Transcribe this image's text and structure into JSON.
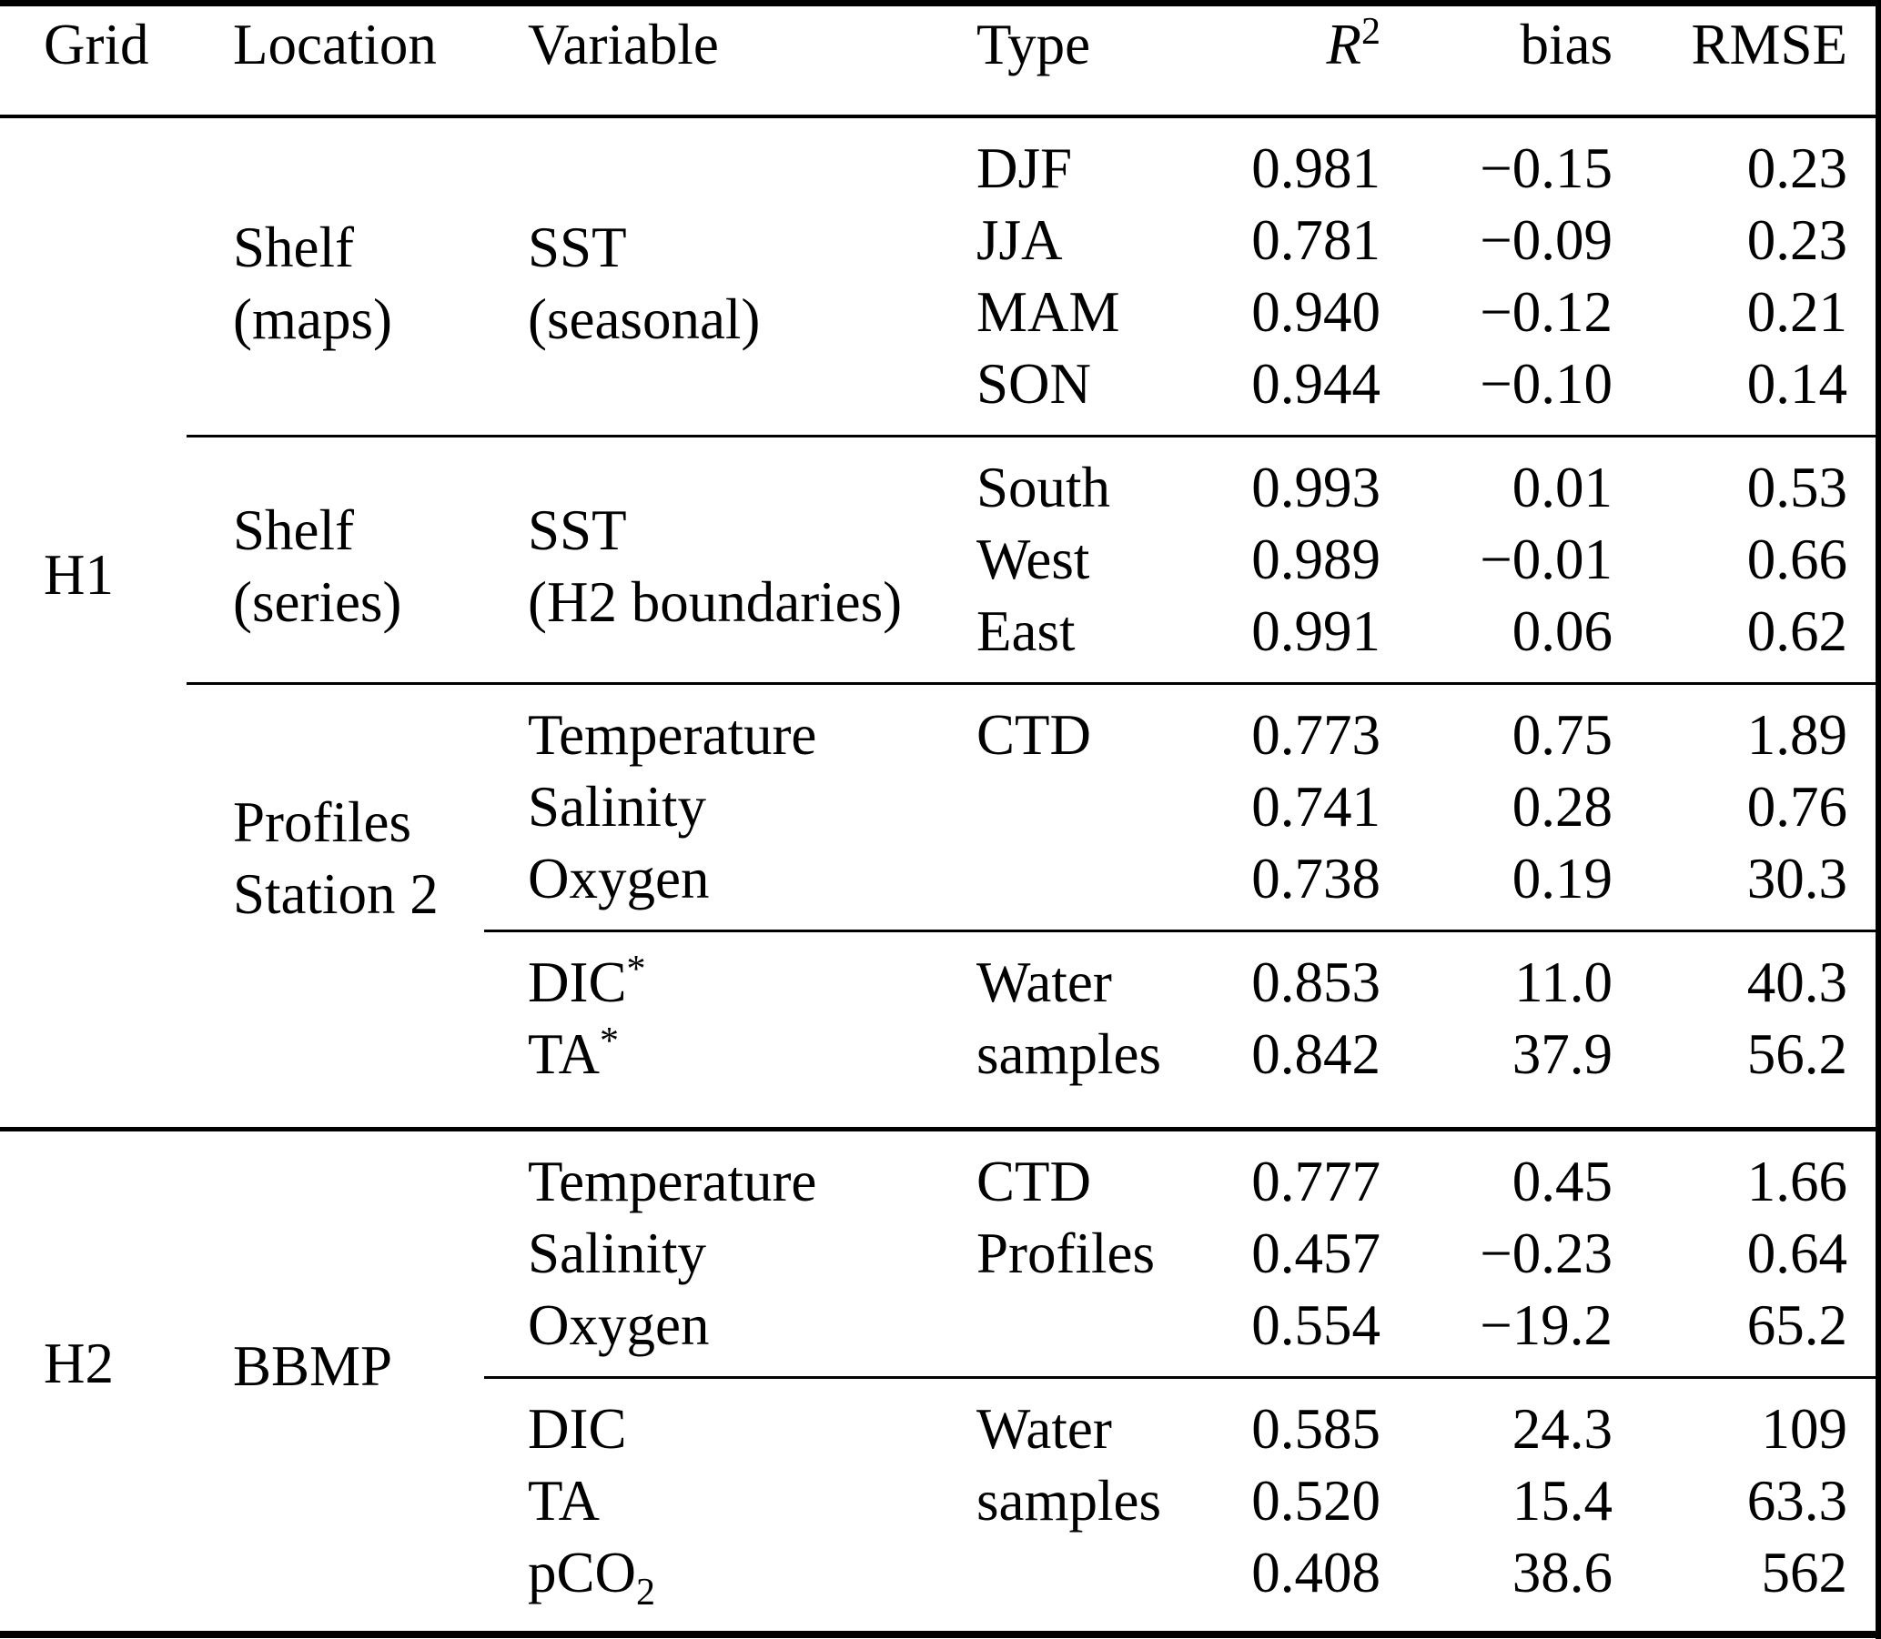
{
  "colors": {
    "background": "#ffffff",
    "text": "#000000",
    "rules": "#000000"
  },
  "header": {
    "grid": "Grid",
    "location": "Location",
    "variable": "Variable",
    "type": "Type",
    "r2_base": "R",
    "r2_sup": "2",
    "bias": "bias",
    "rmse": "RMSE"
  },
  "groups": {
    "h1": "H1",
    "h2": "H2"
  },
  "locations": {
    "shelf_maps_1": "Shelf",
    "shelf_maps_2": "(maps)",
    "shelf_series_1": "Shelf",
    "shelf_series_2": "(series)",
    "profiles_1": "Profiles",
    "profiles_2": "Station 2",
    "bbmp": "BBMP"
  },
  "variables": {
    "sst_seasonal_1": "SST",
    "sst_seasonal_2": "(seasonal)",
    "sst_h2_1": "SST",
    "sst_h2_2": "(H2 boundaries)"
  },
  "rows": [
    {
      "type": "DJF",
      "r2": "0.981",
      "bias": "−0.15",
      "rmse": "0.23"
    },
    {
      "type": "JJA",
      "r2": "0.781",
      "bias": "−0.09",
      "rmse": "0.23"
    },
    {
      "type": "MAM",
      "r2": "0.940",
      "bias": "−0.12",
      "rmse": "0.21"
    },
    {
      "type": "SON",
      "r2": "0.944",
      "bias": "−0.10",
      "rmse": "0.14"
    },
    {
      "type": "South",
      "r2": "0.993",
      "bias": "0.01",
      "rmse": "0.53"
    },
    {
      "type": "West",
      "r2": "0.989",
      "bias": "−0.01",
      "rmse": "0.66"
    },
    {
      "type": "East",
      "r2": "0.991",
      "bias": "0.06",
      "rmse": "0.62"
    },
    {
      "variable": "Temperature",
      "type": "CTD",
      "r2": "0.773",
      "bias": "0.75",
      "rmse": "1.89"
    },
    {
      "variable": "Salinity",
      "type": "",
      "r2": "0.741",
      "bias": "0.28",
      "rmse": "0.76"
    },
    {
      "variable": "Oxygen",
      "type": "",
      "r2": "0.738",
      "bias": "0.19",
      "rmse": "30.3"
    },
    {
      "variable_base": "DIC",
      "variable_sup": "*",
      "type": "Water",
      "r2": "0.853",
      "bias": "11.0",
      "rmse": "40.3"
    },
    {
      "variable_base": "TA",
      "variable_sup": "*",
      "type": "samples",
      "r2": "0.842",
      "bias": "37.9",
      "rmse": "56.2"
    },
    {
      "variable": "Temperature",
      "type": "CTD",
      "r2": "0.777",
      "bias": "0.45",
      "rmse": "1.66"
    },
    {
      "variable": "Salinity",
      "type": "Profiles",
      "r2": "0.457",
      "bias": "−0.23",
      "rmse": "0.64"
    },
    {
      "variable": "Oxygen",
      "type": "",
      "r2": "0.554",
      "bias": "−19.2",
      "rmse": "65.2"
    },
    {
      "variable": "DIC",
      "type": "Water",
      "r2": "0.585",
      "bias": "24.3",
      "rmse": "109"
    },
    {
      "variable": "TA",
      "type": "samples",
      "r2": "0.520",
      "bias": "15.4",
      "rmse": "63.3"
    },
    {
      "variable_base": "pCO",
      "variable_sub": "2",
      "type": "",
      "r2": "0.408",
      "bias": "38.6",
      "rmse": "562"
    }
  ]
}
